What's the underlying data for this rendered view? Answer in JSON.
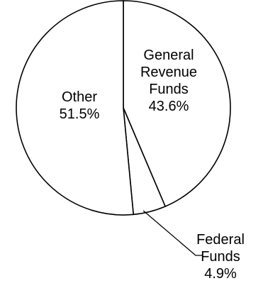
{
  "chart_data": {
    "type": "pie",
    "slices": [
      {
        "name": "General Revenue Funds",
        "label_lines": [
          "General",
          "Revenue",
          "Funds",
          "43.6%"
        ],
        "value": 43.6
      },
      {
        "name": "Federal Funds",
        "label_lines": [
          "Federal",
          "Funds",
          "4.9%"
        ],
        "value": 4.9
      },
      {
        "name": "Other",
        "label_lines": [
          "Other",
          "51.5%"
        ],
        "value": 51.5
      }
    ],
    "start_angle_deg": 0,
    "direction": "clockwise",
    "slice_fill": "#ffffff",
    "stroke_color": "#000000",
    "label_color": "#000000",
    "legend": "none"
  }
}
